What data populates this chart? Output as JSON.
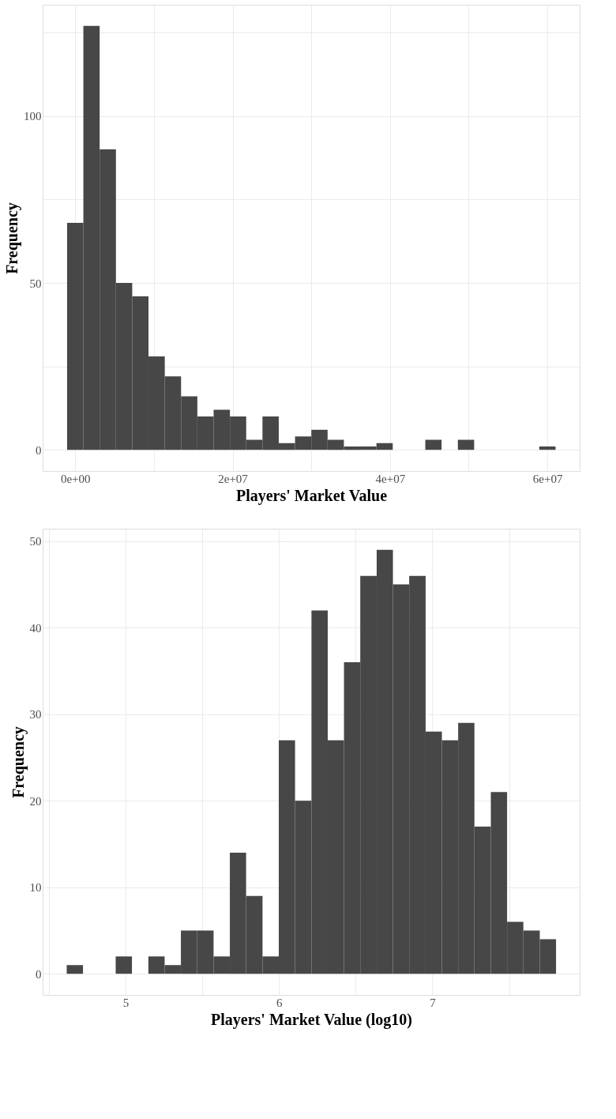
{
  "chart_data": [
    {
      "type": "histogram",
      "xlabel": "Players' Market Value",
      "ylabel": "Frequency",
      "color": "#474747",
      "bins": [
        -1034500,
        1034500,
        3103500,
        5172500,
        7241500,
        9310500,
        11379500,
        13448500,
        15517500,
        17586500,
        19655500,
        21724500,
        23793500,
        25862500,
        27931500,
        30000500,
        32069500,
        34138500,
        36207500,
        38276500,
        40345500,
        42414500,
        44483500,
        46552500,
        48621500,
        50690500,
        52759500,
        54828500,
        56897500,
        58966500,
        61035500
      ],
      "values": [
        68,
        127,
        90,
        50,
        46,
        28,
        22,
        16,
        10,
        12,
        10,
        3,
        10,
        2,
        4,
        6,
        3,
        1,
        1,
        2,
        0,
        0,
        3,
        0,
        3,
        0,
        0,
        0,
        0,
        1
      ],
      "xlim": [
        -4140000,
        64100000
      ],
      "xticks": [
        {
          "value": 0,
          "label": "0e+00"
        },
        {
          "value": 10000000,
          "label": null
        },
        {
          "value": 20000000,
          "label": "2e+07"
        },
        {
          "value": 30000000,
          "label": null
        },
        {
          "value": 40000000,
          "label": "4e+07"
        },
        {
          "value": 50000000,
          "label": null
        },
        {
          "value": 60000000,
          "label": "6e+07"
        }
      ],
      "ylim": [
        -6.35,
        133.35
      ],
      "yticks": [
        0,
        {
          "value": 25,
          "label": null
        },
        50,
        {
          "value": 75,
          "label": null
        },
        100,
        {
          "value": 125,
          "label": null
        }
      ],
      "grid": true
    },
    {
      "type": "histogram",
      "xlabel": "Players' Market Value (log10)",
      "ylabel": "Frequency",
      "color": "#474747",
      "bins": [
        4.617,
        4.723,
        4.83,
        4.936,
        5.042,
        5.149,
        5.255,
        5.361,
        5.467,
        5.574,
        5.68,
        5.786,
        5.893,
        5.999,
        6.105,
        6.212,
        6.318,
        6.424,
        6.53,
        6.637,
        6.743,
        6.849,
        6.956,
        7.062,
        7.168,
        7.274,
        7.381,
        7.487,
        7.593,
        7.7,
        7.806
      ],
      "values": [
        1,
        0,
        0,
        2,
        0,
        2,
        1,
        5,
        5,
        2,
        14,
        9,
        2,
        27,
        20,
        42,
        27,
        36,
        46,
        49,
        45,
        46,
        28,
        27,
        29,
        17,
        21,
        6,
        5,
        4
      ],
      "xlim": [
        4.46,
        7.96
      ],
      "xticks": [
        {
          "value": 4.5,
          "label": null
        },
        5,
        {
          "value": 5.5,
          "label": null
        },
        6,
        {
          "value": 6.5,
          "label": null
        },
        7,
        {
          "value": 7.5,
          "label": null
        }
      ],
      "ylim": [
        -2.45,
        51.45
      ],
      "yticks": [
        0,
        10,
        20,
        30,
        40,
        50
      ],
      "grid": true
    }
  ]
}
